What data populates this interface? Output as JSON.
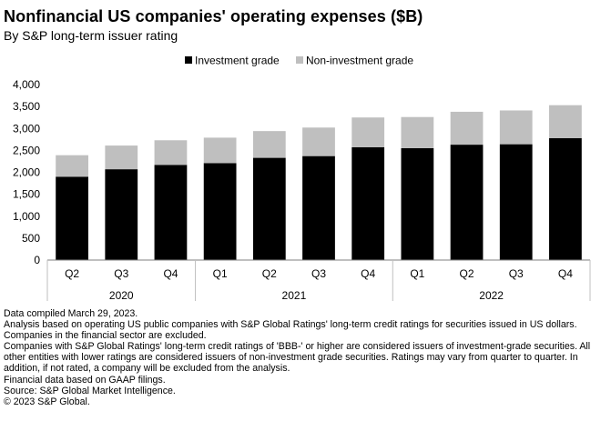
{
  "chart_data": {
    "type": "bar",
    "stacked": true,
    "title": "Nonfinancial US companies' operating expenses ($B)",
    "subtitle": "By S&P long-term issuer rating",
    "categories": [
      "Q2",
      "Q3",
      "Q4",
      "Q1",
      "Q2",
      "Q3",
      "Q4",
      "Q1",
      "Q2",
      "Q3",
      "Q4"
    ],
    "year_groups": [
      {
        "label": "2020",
        "count": 3
      },
      {
        "label": "2021",
        "count": 4
      },
      {
        "label": "2022",
        "count": 4
      }
    ],
    "series": [
      {
        "name": "Investment grade",
        "color": "#000000",
        "values": [
          1900,
          2070,
          2170,
          2210,
          2330,
          2370,
          2570,
          2550,
          2630,
          2640,
          2780
        ]
      },
      {
        "name": "Non-investment grade",
        "color": "#bfbfbf",
        "values": [
          490,
          540,
          560,
          580,
          610,
          650,
          680,
          710,
          750,
          770,
          750
        ]
      }
    ],
    "ylim": [
      0,
      4000
    ],
    "yticks": [
      0,
      500,
      1000,
      1500,
      2000,
      2500,
      3000,
      3500,
      4000
    ],
    "ytick_labels": [
      "0",
      "500",
      "1,000",
      "1,500",
      "2,000",
      "2,500",
      "3,000",
      "3,500",
      "4,000"
    ],
    "xlabel": "",
    "ylabel": "",
    "legend_position": "top-center",
    "grid": false
  },
  "notes": [
    "Data compiled March 29, 2023.",
    "Analysis based on operating US public companies with S&P Global Ratings' long-term credit ratings for securities issued in US dollars. Companies in the financial sector are excluded.",
    "Companies with S&P Global Ratings' long-term credit ratings of 'BBB-' or higher are considered issuers of investment-grade securities. All other entities with lower ratings are considered issuers of non-investment grade securities.  Ratings may vary from quarter to quarter. In addition, if not rated, a company will be excluded from the analysis.",
    "Financial data based on GAAP filings.",
    "Source: S&P Global Market Intelligence.",
    "© 2023 S&P Global."
  ]
}
